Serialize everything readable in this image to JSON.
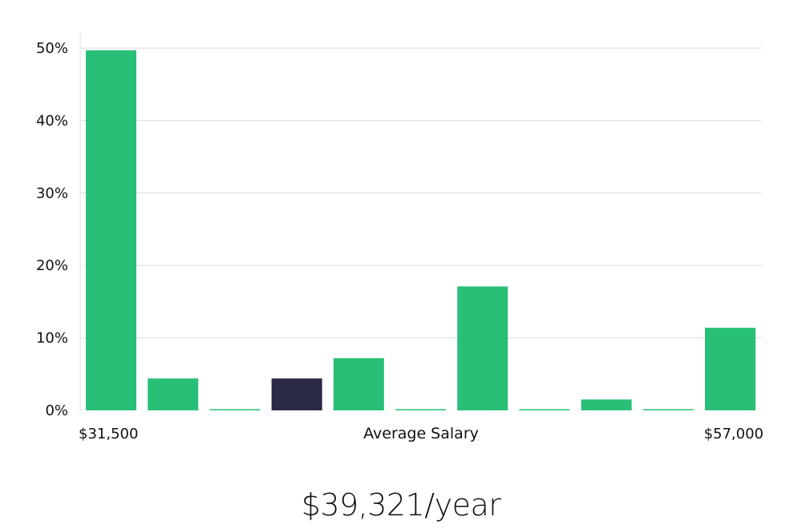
{
  "chart_data": {
    "type": "bar",
    "xlabel": "Average Salary",
    "x_range_labels": {
      "min": "$31,500",
      "max": "$57,000"
    },
    "yticks": [
      "0%",
      "10%",
      "20%",
      "30%",
      "40%",
      "50%"
    ],
    "ylim": [
      0,
      52
    ],
    "grid": true,
    "bins": 11,
    "values": [
      49.7,
      4.4,
      0.0,
      4.4,
      7.2,
      0.0,
      17.1,
      0.0,
      1.5,
      0.0,
      11.4
    ],
    "highlight_index": 3,
    "colors": {
      "bar": "#29bf76",
      "highlight": "#2a2847",
      "grid": "#dddddd",
      "axis": "#dddddd"
    }
  },
  "headline": "$39,321/year"
}
